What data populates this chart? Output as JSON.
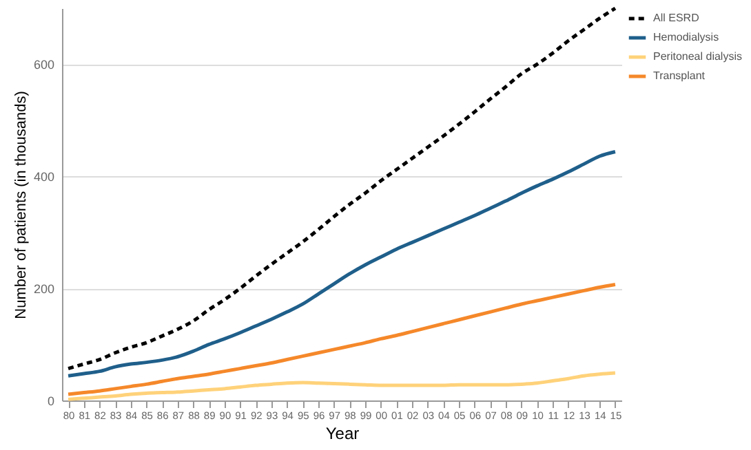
{
  "chart_data": {
    "type": "line",
    "xlabel": "Year",
    "ylabel": "Number of patients (in thousands)",
    "categories": [
      "80",
      "81",
      "82",
      "83",
      "84",
      "85",
      "86",
      "87",
      "88",
      "89",
      "90",
      "91",
      "92",
      "93",
      "94",
      "95",
      "96",
      "97",
      "98",
      "99",
      "00",
      "01",
      "02",
      "03",
      "04",
      "05",
      "06",
      "07",
      "08",
      "09",
      "10",
      "11",
      "12",
      "13",
      "14",
      "15"
    ],
    "series": [
      {
        "name": "All ESRD",
        "color": "#000000",
        "line_style": "dashed",
        "values": [
          57,
          65,
          73,
          85,
          95,
          103,
          115,
          127,
          142,
          162,
          180,
          200,
          222,
          243,
          263,
          283,
          305,
          328,
          350,
          370,
          392,
          412,
          432,
          452,
          472,
          493,
          515,
          538,
          560,
          583,
          600,
          620,
          642,
          662,
          682,
          700
        ]
      },
      {
        "name": "Hemodialysis",
        "color": "#1f5f8b",
        "line_style": "solid",
        "values": [
          44,
          48,
          52,
          60,
          65,
          68,
          72,
          78,
          88,
          100,
          110,
          121,
          133,
          145,
          158,
          172,
          190,
          208,
          226,
          242,
          256,
          270,
          282,
          294,
          306,
          318,
          330,
          343,
          356,
          370,
          383,
          395,
          408,
          422,
          436,
          444
        ]
      },
      {
        "name": "Peritoneal dialysis",
        "color": "#ffd27a",
        "line_style": "solid",
        "values": [
          2,
          4,
          6,
          8,
          11,
          13,
          14,
          15,
          17,
          19,
          21,
          24,
          27,
          29,
          31,
          32,
          31,
          30,
          29,
          28,
          27,
          27,
          27,
          27,
          27,
          28,
          28,
          28,
          28,
          29,
          31,
          35,
          39,
          44,
          47,
          49
        ]
      },
      {
        "name": "Transplant",
        "color": "#f5882a",
        "line_style": "solid",
        "values": [
          11,
          14,
          17,
          21,
          25,
          29,
          34,
          39,
          43,
          47,
          52,
          57,
          62,
          67,
          73,
          79,
          85,
          91,
          97,
          103,
          110,
          116,
          123,
          130,
          137,
          144,
          151,
          158,
          165,
          172,
          178,
          184,
          190,
          196,
          202,
          207
        ]
      }
    ],
    "ylim": [
      0,
      700
    ],
    "yticks": [
      0,
      200,
      400,
      600
    ],
    "grid": "y",
    "legend": "right"
  }
}
